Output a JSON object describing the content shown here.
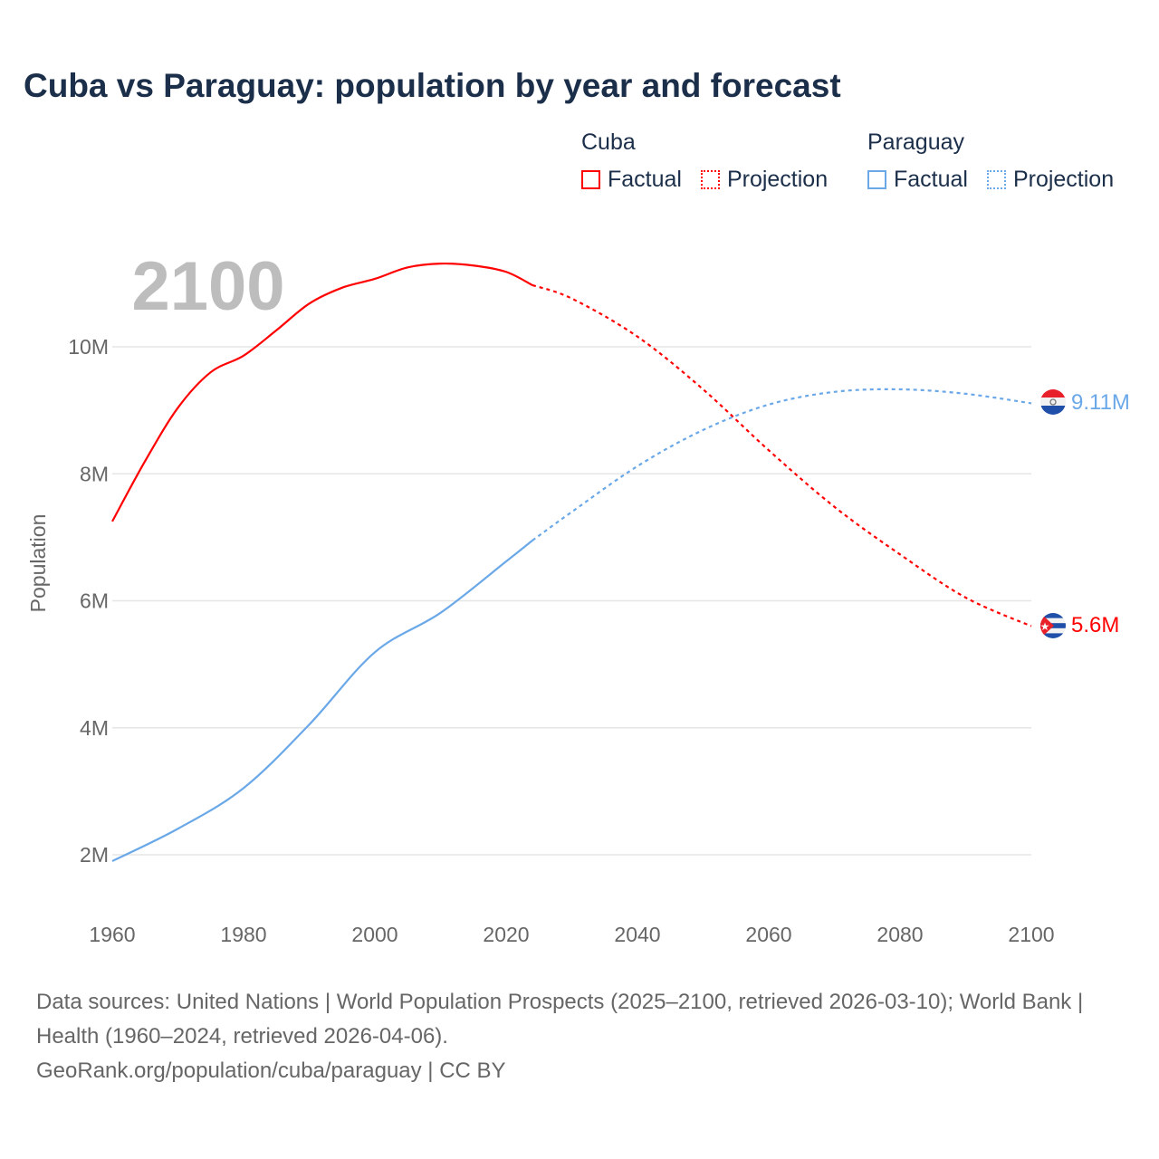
{
  "chart_data": {
    "type": "line",
    "title": "Cuba vs Paraguay: population by year and forecast",
    "xlabel": "",
    "ylabel": "Population",
    "xlim": [
      1960,
      2100
    ],
    "ylim": [
      1.5,
      11.5
    ],
    "x_ticks": [
      1960,
      1980,
      2000,
      2020,
      2040,
      2060,
      2080,
      2100
    ],
    "y_ticks": [
      {
        "value": 2,
        "label": "2M"
      },
      {
        "value": 4,
        "label": "4M"
      },
      {
        "value": 6,
        "label": "6M"
      },
      {
        "value": 8,
        "label": "8M"
      },
      {
        "value": 10,
        "label": "10M"
      }
    ],
    "grid": true,
    "year_watermark": "2100",
    "units": "millions",
    "series": [
      {
        "name": "Cuba",
        "color": "#ff0000",
        "end_label": "5.6M",
        "flag": "cuba-flag",
        "factual": {
          "x": [
            1960,
            1965,
            1970,
            1975,
            1980,
            1985,
            1990,
            1995,
            2000,
            2005,
            2010,
            2015,
            2020,
            2024
          ],
          "y": [
            7.25,
            8.2,
            9.04,
            9.6,
            9.86,
            10.26,
            10.68,
            10.93,
            11.07,
            11.25,
            11.31,
            11.28,
            11.18,
            10.97
          ]
        },
        "projection": {
          "x": [
            2024,
            2030,
            2040,
            2050,
            2060,
            2070,
            2080,
            2090,
            2100
          ],
          "y": [
            10.97,
            10.76,
            10.16,
            9.33,
            8.37,
            7.48,
            6.73,
            6.05,
            5.6
          ]
        }
      },
      {
        "name": "Paraguay",
        "color": "#6aa8e8",
        "end_label": "9.11M",
        "flag": "paraguay-flag",
        "factual": {
          "x": [
            1960,
            1970,
            1980,
            1990,
            2000,
            2010,
            2020,
            2024
          ],
          "y": [
            1.9,
            2.41,
            3.05,
            4.05,
            5.19,
            5.81,
            6.62,
            6.95
          ]
        },
        "projection": {
          "x": [
            2024,
            2030,
            2040,
            2050,
            2060,
            2070,
            2080,
            2090,
            2100
          ],
          "y": [
            6.95,
            7.4,
            8.12,
            8.69,
            9.09,
            9.29,
            9.33,
            9.26,
            9.11
          ]
        }
      }
    ]
  },
  "legend": {
    "groups": [
      {
        "name": "Cuba",
        "factual": "Factual",
        "projection": "Projection"
      },
      {
        "name": "Paraguay",
        "factual": "Factual",
        "projection": "Projection"
      }
    ]
  },
  "footer": {
    "sources": "Data sources: United Nations | World Population Prospects (2025–2100, retrieved 2026-03-10); World Bank | Health (1960–2024, retrieved 2026-04-06).",
    "credit": "GeoRank.org/population/cuba/paraguay | CC BY"
  }
}
